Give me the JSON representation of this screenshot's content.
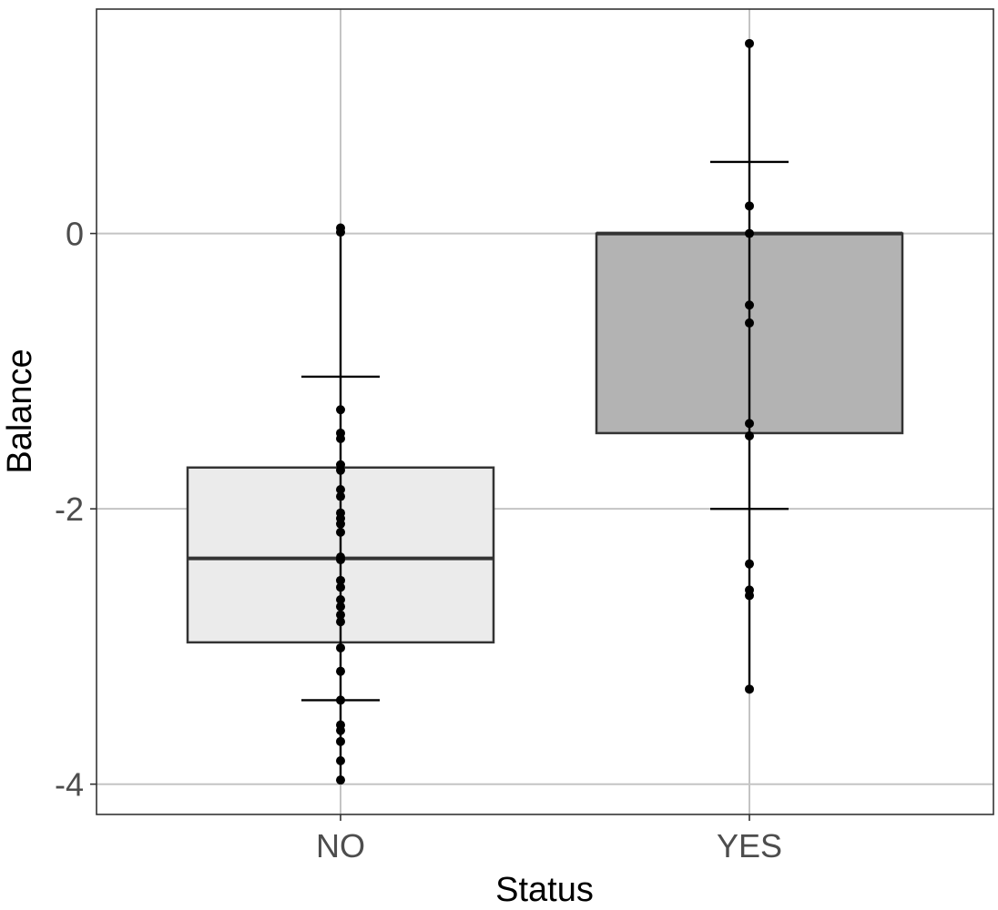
{
  "chart_data": {
    "type": "box",
    "xlabel": "Status",
    "ylabel": "Balance",
    "ylim": [
      -4.22,
      1.63
    ],
    "y_ticks": [
      0,
      -2,
      -4
    ],
    "grid": true,
    "categories": [
      "NO",
      "YES"
    ],
    "boxes": [
      {
        "category": "NO",
        "q1": -2.97,
        "median": -2.36,
        "q3": -1.7,
        "whisker_low": -3.98,
        "whisker_high": 0.04,
        "error_bar_low": -3.39,
        "error_bar_high": -1.04,
        "fill": "#ebebeb",
        "points": [
          0.04,
          0.01,
          -1.28,
          -1.45,
          -1.49,
          -1.68,
          -1.72,
          -1.86,
          -1.91,
          -2.03,
          -2.07,
          -2.11,
          -2.17,
          -2.35,
          -2.37,
          -2.52,
          -2.57,
          -2.66,
          -2.71,
          -2.77,
          -2.82,
          -3.01,
          -3.18,
          -3.39,
          -3.57,
          -3.61,
          -3.69,
          -3.83,
          -3.97
        ]
      },
      {
        "category": "YES",
        "q1": -1.45,
        "median": 0.0,
        "q3": 0.0,
        "whisker_low": -3.31,
        "whisker_high": 1.38,
        "error_bar_low": -2.0,
        "error_bar_high": 0.52,
        "fill": "#b3b3b3",
        "points": [
          1.38,
          0.2,
          0.0,
          -0.52,
          -0.65,
          -1.38,
          -1.47,
          -2.4,
          -2.59,
          -2.63,
          -3.31
        ]
      }
    ]
  }
}
